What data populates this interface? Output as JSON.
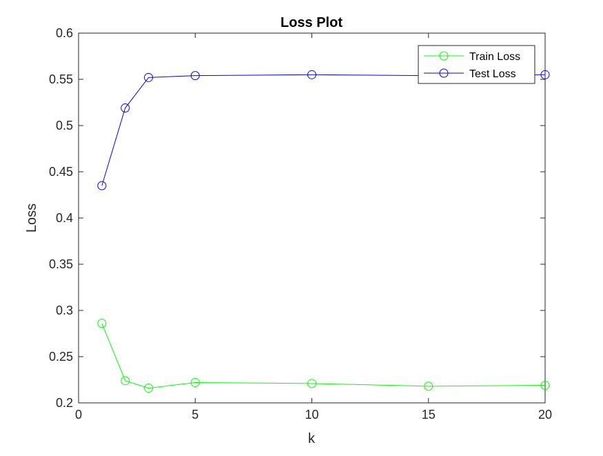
{
  "chart_data": {
    "type": "line",
    "title": "Loss Plot",
    "xlabel": "k",
    "ylabel": "Loss",
    "xlim": [
      0,
      20
    ],
    "ylim": [
      0.2,
      0.6
    ],
    "xticks": [
      0,
      5,
      10,
      15,
      20
    ],
    "xtick_labels": [
      "0",
      "5",
      "10",
      "15",
      "20"
    ],
    "yticks": [
      0.2,
      0.25,
      0.3,
      0.35,
      0.4,
      0.45,
      0.5,
      0.55,
      0.6
    ],
    "ytick_labels": [
      "0.2",
      "0.25",
      "0.3",
      "0.35",
      "0.4",
      "0.45",
      "0.5",
      "0.55",
      "0.6"
    ],
    "grid": false,
    "legend_position": "top-right",
    "x": [
      1,
      2,
      3,
      5,
      10,
      15,
      20
    ],
    "series": [
      {
        "name": "Train Loss",
        "color": "#00ff00",
        "marker": "circle",
        "values": [
          0.286,
          0.224,
          0.216,
          0.222,
          0.221,
          0.218,
          0.219
        ]
      },
      {
        "name": "Test Loss",
        "color": "#0000ff",
        "marker": "circle",
        "values": [
          0.435,
          0.519,
          0.552,
          0.554,
          0.555,
          0.554,
          0.555
        ]
      }
    ]
  }
}
